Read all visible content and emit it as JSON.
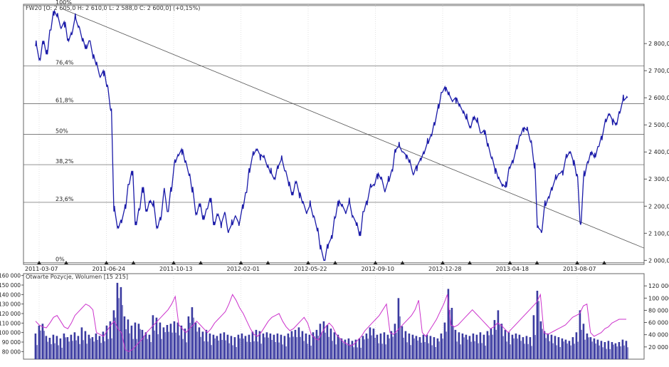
{
  "chart_data": [
    {
      "type": "line",
      "title": "FW20 [O: 2 605,0  H: 2 610,0  L: 2 588,0  C: 2 600,0] (+0,15%)",
      "x_ticks": [
        "2011-03-07",
        "2011-06-24",
        "2011-10-13",
        "2012-02-01",
        "2012-05-22",
        "2012-09-10",
        "2012-12-28",
        "2013-04-18",
        "2013-08-07"
      ],
      "y_ticks": [
        "2 000,0",
        "2 100,0",
        "2 200,0",
        "2 300,0",
        "2 400,0",
        "2 500,0",
        "2 600,0",
        "2 700,0",
        "2 800,0"
      ],
      "ylim": [
        1985,
        2945
      ],
      "fib_levels": [
        {
          "label": "100%",
          "value": 2940
        },
        {
          "label": "76,4%",
          "value": 2717
        },
        {
          "label": "61,8%",
          "value": 2578
        },
        {
          "label": "50%",
          "value": 2465
        },
        {
          "label": "38,2%",
          "value": 2353
        },
        {
          "label": "23,6%",
          "value": 2214
        },
        {
          "label": "0%",
          "value": 1991
        }
      ],
      "trend_line": {
        "from": [
          0,
          2928
        ],
        "to": [
          760,
          2045
        ]
      },
      "series": [
        {
          "values": [
            2790,
            2740,
            2810,
            2760,
            2850,
            2920,
            2900,
            2860,
            2880,
            2810,
            2840,
            2890,
            2860,
            2820,
            2780,
            2810,
            2760,
            2720,
            2680,
            2700,
            2640,
            2560,
            2180,
            2120,
            2150,
            2190,
            2280,
            2330,
            2130,
            2190,
            2270,
            2180,
            2220,
            2200,
            2120,
            2160,
            2250,
            2180,
            2270,
            2360,
            2390,
            2410,
            2360,
            2320,
            2250,
            2170,
            2210,
            2150,
            2190,
            2230,
            2130,
            2170,
            2140,
            2170,
            2110,
            2130,
            2160,
            2140,
            2190,
            2250,
            2340,
            2390,
            2410,
            2390,
            2380,
            2350,
            2320,
            2300,
            2350,
            2370,
            2330,
            2290,
            2240,
            2290,
            2250,
            2210,
            2180,
            2200,
            2160,
            2120,
            2040,
            2000,
            2060,
            2080,
            2160,
            2220,
            2200,
            2180,
            2210,
            2160,
            2140,
            2090,
            2180,
            2220,
            2270,
            2280,
            2320,
            2300,
            2260,
            2290,
            2330,
            2410,
            2420,
            2400,
            2390,
            2360,
            2320,
            2350,
            2370,
            2400,
            2430,
            2460,
            2510,
            2560,
            2620,
            2640,
            2610,
            2590,
            2600,
            2570,
            2550,
            2520,
            2490,
            2530,
            2510,
            2470,
            2480,
            2420,
            2380,
            2340,
            2300,
            2280,
            2270,
            2340,
            2370,
            2410,
            2460,
            2490,
            2480,
            2440,
            2360,
            2120,
            2110,
            2200,
            2230,
            2270,
            2300,
            2320,
            2330,
            2380,
            2400,
            2370,
            2310,
            2140,
            2310,
            2360,
            2400,
            2380,
            2420,
            2460,
            2510,
            2540,
            2520,
            2500,
            2550,
            2590,
            2600
          ],
          "color": "#1a1aa8"
        }
      ]
    },
    {
      "type": "bar",
      "title": "Otwarte Pozycje, Wolumen [15 215]",
      "y_left_ticks": [
        "80 000",
        "90 000",
        "100 000",
        "110 000",
        "120 000",
        "130 000",
        "140 000",
        "150 000",
        "160 000"
      ],
      "y_right_ticks": [
        "20 000",
        "40 000",
        "60 000",
        "80 000",
        "100 000",
        "120 000"
      ],
      "left_ylim": [
        72000,
        162000
      ],
      "right_ylim": [
        0,
        140000
      ],
      "series": [
        {
          "type": "bar",
          "axis": "right",
          "color": "#3a3aa0",
          "values": [
            42000,
            55000,
            58000,
            38000,
            35000,
            40000,
            38000,
            34000,
            42000,
            36000,
            40000,
            44000,
            38000,
            52000,
            46000,
            40000,
            36000,
            42000,
            38000,
            45000,
            55000,
            62000,
            80000,
            125000,
            118000,
            70000,
            65000,
            55000,
            60000,
            58000,
            48000,
            44000,
            40000,
            72000,
            68000,
            60000,
            52000,
            56000,
            58000,
            62000,
            60000,
            55000,
            50000,
            70000,
            85000,
            60000,
            52000,
            45000,
            48000,
            42000,
            40000,
            38000,
            42000,
            44000,
            40000,
            38000,
            36000,
            40000,
            42000,
            38000,
            40000,
            45000,
            48000,
            46000,
            42000,
            44000,
            42000,
            40000,
            42000,
            40000,
            38000,
            42000,
            46000,
            48000,
            52000,
            46000,
            42000,
            40000,
            44000,
            48000,
            58000,
            62000,
            56000,
            50000,
            44000,
            40000,
            34000,
            32000,
            34000,
            30000,
            32000,
            34000,
            38000,
            42000,
            52000,
            50000,
            40000,
            42000,
            44000,
            40000,
            46000,
            58000,
            100000,
            54000,
            46000,
            42000,
            40000,
            38000,
            36000,
            40000,
            40000,
            38000,
            36000,
            34000,
            42000,
            60000,
            115000,
            84000,
            48000,
            44000,
            42000,
            40000,
            38000,
            42000,
            40000,
            44000,
            40000,
            46000,
            50000,
            64000,
            80000,
            58000,
            48000,
            44000,
            40000,
            42000,
            40000,
            36000,
            38000,
            36000,
            72000,
            112000,
            62000,
            46000,
            42000,
            40000,
            38000,
            36000,
            34000,
            32000,
            30000,
            36000,
            44000,
            80000,
            58000,
            42000,
            36000,
            34000,
            32000,
            30000,
            28000,
            30000,
            28000,
            26000,
            28000,
            32000,
            30000
          ]
        },
        {
          "type": "line",
          "axis": "left",
          "color": "#cc33cc",
          "values": [
            112000,
            108000,
            106000,
            105000,
            110000,
            116000,
            118000,
            112000,
            106000,
            104000,
            110000,
            118000,
            122000,
            126000,
            130000,
            128000,
            124000,
            100000,
            98000,
            96000,
            102000,
            108000,
            112000,
            104000,
            100000,
            82000,
            80000,
            82000,
            86000,
            90000,
            94000,
            100000,
            104000,
            108000,
            112000,
            116000,
            120000,
            124000,
            130000,
            138000,
            108000,
            104000,
            100000,
            104000,
            108000,
            112000,
            108000,
            104000,
            100000,
            104000,
            110000,
            114000,
            118000,
            122000,
            130000,
            140000,
            134000,
            126000,
            120000,
            112000,
            104000,
            98000,
            96000,
            100000,
            106000,
            112000,
            116000,
            118000,
            120000,
            112000,
            106000,
            102000,
            104000,
            108000,
            112000,
            116000,
            110000,
            98000,
            94000,
            92000,
            100000,
            106000,
            110000,
            106000,
            98000,
            94000,
            90000,
            88000,
            86000,
            88000,
            92000,
            96000,
            102000,
            106000,
            110000,
            114000,
            118000,
            124000,
            130000,
            100000,
            98000,
            102000,
            106000,
            110000,
            114000,
            118000,
            124000,
            134000,
            100000,
            96000,
            102000,
            108000,
            114000,
            122000,
            130000,
            140000,
            108000,
            106000,
            108000,
            112000,
            116000,
            120000,
            124000,
            120000,
            116000,
            112000,
            108000,
            104000,
            106000,
            110000,
            108000,
            104000,
            100000,
            104000,
            108000,
            112000,
            116000,
            120000,
            124000,
            128000,
            132000,
            140000,
            100000,
            98000,
            100000,
            102000,
            104000,
            106000,
            108000,
            112000,
            116000,
            118000,
            120000,
            128000,
            130000,
            100000,
            96000,
            98000,
            100000,
            104000,
            106000,
            110000,
            112000,
            114000,
            114000,
            114000
          ]
        }
      ]
    }
  ]
}
